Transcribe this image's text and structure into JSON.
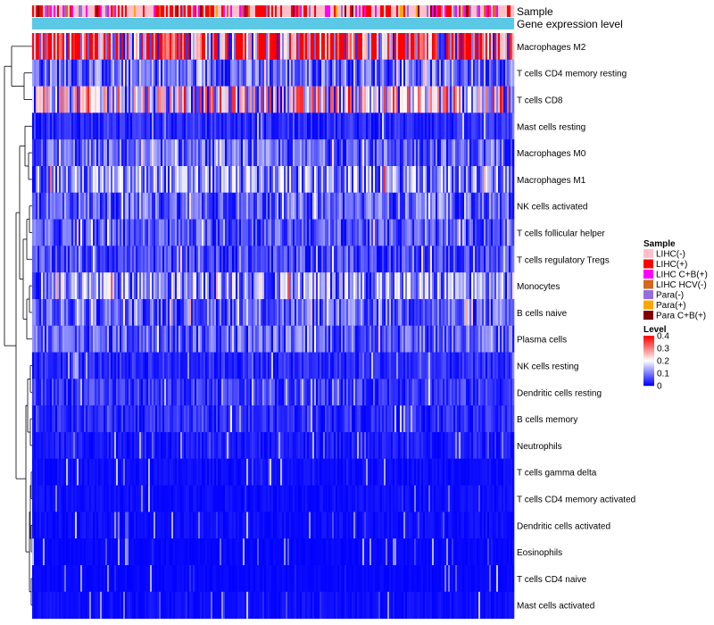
{
  "chart_data": {
    "type": "heatmap",
    "annotation_tracks": [
      "Sample",
      "Gene expression level"
    ],
    "rows": [
      "Macrophages M2",
      "T cells CD4 memory resting",
      "T cells CD8",
      "Mast cells resting",
      "Macrophages M0",
      "Macrophages M1",
      "NK cells activated",
      "T cells follicular helper",
      "T cells regulatory  Tregs",
      "Monocytes",
      "B cells naive",
      "Plasma cells",
      "NK cells resting",
      "Dendritic cells resting",
      "B cells memory",
      "Neutrophils",
      "T cells gamma delta",
      "T cells CD4 memory activated",
      "Dendritic cells activated",
      "Eosinophils",
      "T cells CD4 naive",
      "Mast cells activated"
    ],
    "row_mean_level": [
      0.3,
      0.08,
      0.18,
      0.03,
      0.07,
      0.1,
      0.07,
      0.06,
      0.05,
      0.11,
      0.07,
      0.07,
      0.03,
      0.04,
      0.03,
      0.02,
      0.01,
      0.01,
      0.01,
      0.005,
      0.005,
      0.01
    ],
    "legend": {
      "sample_title": "Sample",
      "samples": [
        {
          "label": "LIHC(-)",
          "color": "#ffc0cb"
        },
        {
          "label": "LIHC(+)",
          "color": "#ff0000"
        },
        {
          "label": "LIHC C+B(+)",
          "color": "#ff00ff"
        },
        {
          "label": "LIHC HCV(-)",
          "color": "#d2691e"
        },
        {
          "label": "Para(-)",
          "color": "#9370db"
        },
        {
          "label": "Para(+)",
          "color": "#ffa500"
        },
        {
          "label": "Para C+B(+)",
          "color": "#800000"
        }
      ],
      "level_title": "Level",
      "level_ticks": [
        "0.4",
        "0.3",
        "0.2",
        "0.1",
        "0"
      ],
      "level_min": 0,
      "level_max": 0.4,
      "level_colors": {
        "low": "#0000ff",
        "mid": "#ffffff",
        "high": "#ff0000"
      }
    },
    "gene_expression_color": "#5bc8e6"
  }
}
